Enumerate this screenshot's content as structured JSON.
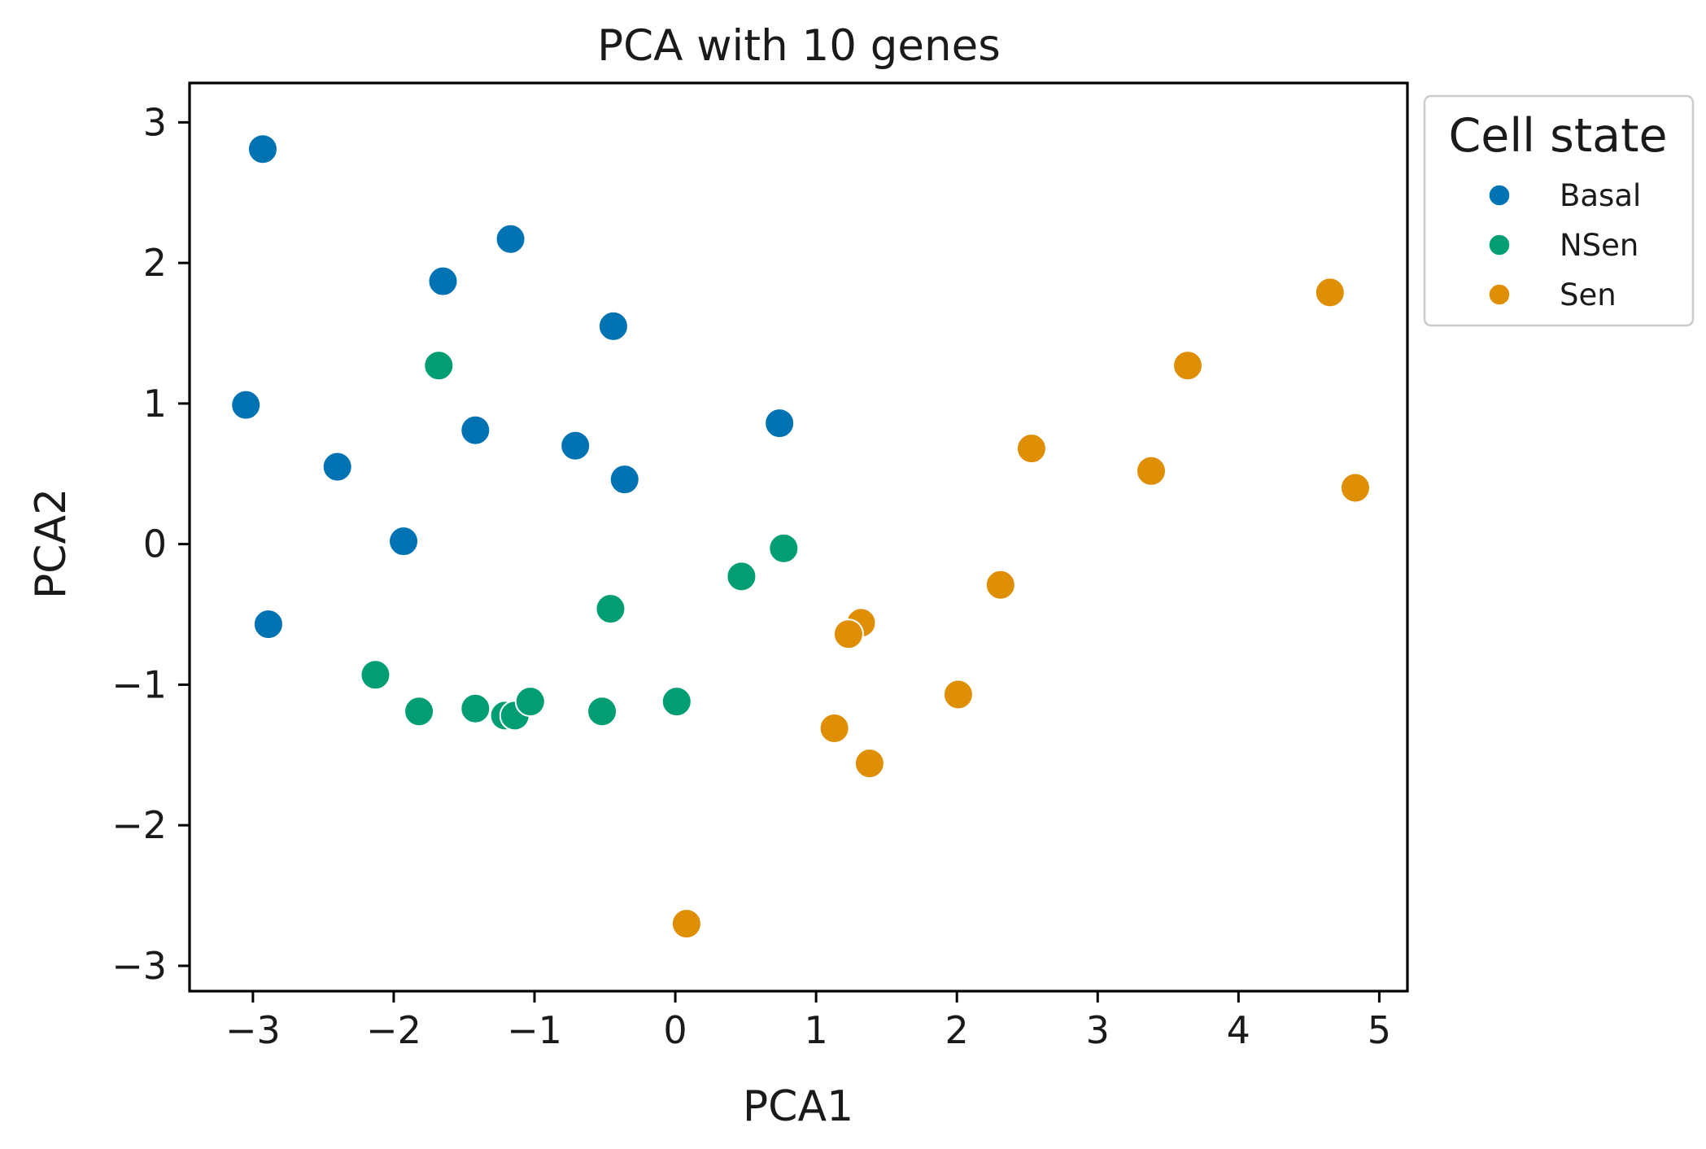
{
  "chart_data": {
    "type": "scatter",
    "title": "PCA with 10 genes",
    "xlabel": "PCA1",
    "ylabel": "PCA2",
    "xlim": [
      -3.45,
      5.2
    ],
    "ylim": [
      -3.18,
      3.28
    ],
    "xticks": [
      -3,
      -2,
      -1,
      0,
      1,
      2,
      3,
      4,
      5
    ],
    "yticks": [
      -3,
      -2,
      -1,
      0,
      1,
      2,
      3
    ],
    "xtick_labels": [
      "−3",
      "−2",
      "−1",
      "0",
      "1",
      "2",
      "3",
      "4",
      "5"
    ],
    "ytick_labels": [
      "−3",
      "−2",
      "−1",
      "0",
      "1",
      "2",
      "3"
    ],
    "grid": false,
    "legend": {
      "title": "Cell state",
      "position": "outside-right-top"
    },
    "series": [
      {
        "name": "Basal",
        "color": "#0173b2",
        "points": [
          [
            -2.93,
            2.81
          ],
          [
            -1.17,
            2.17
          ],
          [
            -1.65,
            1.87
          ],
          [
            -0.44,
            1.55
          ],
          [
            -3.05,
            0.99
          ],
          [
            -1.42,
            0.81
          ],
          [
            -0.71,
            0.7
          ],
          [
            0.74,
            0.86
          ],
          [
            -2.4,
            0.55
          ],
          [
            -0.36,
            0.46
          ],
          [
            -1.93,
            0.02
          ],
          [
            -2.89,
            -0.57
          ]
        ]
      },
      {
        "name": "NSen",
        "color": "#029e73",
        "points": [
          [
            -1.68,
            1.27
          ],
          [
            0.77,
            -0.03
          ],
          [
            0.47,
            -0.23
          ],
          [
            -0.46,
            -0.46
          ],
          [
            -2.13,
            -0.93
          ],
          [
            -1.82,
            -1.19
          ],
          [
            -1.42,
            -1.17
          ],
          [
            -1.21,
            -1.22
          ],
          [
            -1.14,
            -1.22
          ],
          [
            -1.03,
            -1.12
          ],
          [
            -0.52,
            -1.19
          ],
          [
            0.01,
            -1.12
          ]
        ]
      },
      {
        "name": "Sen",
        "color": "#de8f05",
        "points": [
          [
            4.65,
            1.79
          ],
          [
            3.64,
            1.27
          ],
          [
            2.53,
            0.68
          ],
          [
            3.38,
            0.52
          ],
          [
            4.83,
            0.4
          ],
          [
            2.31,
            -0.29
          ],
          [
            1.32,
            -0.56
          ],
          [
            1.23,
            -0.64
          ],
          [
            2.01,
            -1.07
          ],
          [
            1.13,
            -1.31
          ],
          [
            1.38,
            -1.56
          ],
          [
            0.08,
            -2.7
          ]
        ]
      }
    ]
  }
}
